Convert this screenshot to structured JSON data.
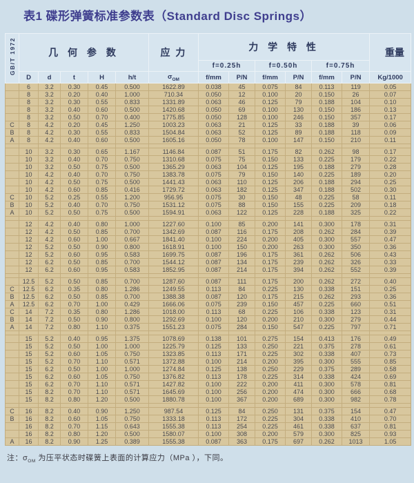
{
  "title": "表1 碟形弹簧标准参数表（Standard Disc Springs）",
  "side_label": "GB/T 1972",
  "header": {
    "geometry": "几 何 参 数",
    "stress": "应 力",
    "mechanical": "力 学 特 性",
    "weight": "重量",
    "f_levels": [
      "f=0.25h",
      "f=0.50h",
      "f=0.75h"
    ],
    "sigma": "σ",
    "sigma_sub": "OM",
    "cols": {
      "D": "D",
      "d": "d",
      "t": "t",
      "H": "H",
      "ht": "h/t",
      "f": "f/mm",
      "p": "P/N",
      "kg": "Kg/1000"
    }
  },
  "table": {
    "columns_per_row": [
      "series",
      "D",
      "d",
      "t",
      "H",
      "h/t",
      "sigma_OM",
      "f_025",
      "P_025",
      "f_050",
      "P_050",
      "f_075",
      "P_075",
      "kg_per_1000"
    ],
    "groups": [
      {
        "rows": [
          [
            "",
            "6",
            "3.2",
            "0.30",
            "0.45",
            "0.500",
            "1622.89",
            "0.038",
            "45",
            "0.075",
            "84",
            "0.113",
            "119",
            "0.05"
          ],
          [
            "",
            "8",
            "3.2",
            "0.20",
            "0.40",
            "1.000",
            "710.34",
            "0.050",
            "12",
            "0.100",
            "20",
            "0.150",
            "26",
            "0.07"
          ],
          [
            "",
            "8",
            "3.2",
            "0.30",
            "0.55",
            "0.833",
            "1331.89",
            "0.063",
            "46",
            "0.125",
            "79",
            "0.188",
            "104",
            "0.10"
          ],
          [
            "",
            "8",
            "3.2",
            "0.40",
            "0.60",
            "0.500",
            "1420.68",
            "0.050",
            "69",
            "0.100",
            "130",
            "0.150",
            "186",
            "0.13"
          ],
          [
            "",
            "8",
            "3.2",
            "0.50",
            "0.70",
            "0.400",
            "1775.85",
            "0.050",
            "128",
            "0.100",
            "246",
            "0.150",
            "357",
            "0.17"
          ],
          [
            "C",
            "8",
            "4.2",
            "0.20",
            "0.45",
            "1.250",
            "1003.23",
            "0.063",
            "21",
            "0.125",
            "33",
            "0.188",
            "39",
            "0.06"
          ],
          [
            "B",
            "8",
            "4.2",
            "0.30",
            "0.55",
            "0.833",
            "1504.84",
            "0.063",
            "52",
            "0.125",
            "89",
            "0.188",
            "118",
            "0.09"
          ],
          [
            "A",
            "8",
            "4.2",
            "0.40",
            "0.60",
            "0.500",
            "1605.16",
            "0.050",
            "78",
            "0.100",
            "147",
            "0.150",
            "210",
            "0.11"
          ]
        ]
      },
      {
        "rows": [
          [
            "",
            "10",
            "3.2",
            "0.30",
            "0.65",
            "1.167",
            "1146.84",
            "0.087",
            "51",
            "0.175",
            "82",
            "0.262",
            "98",
            "0.17"
          ],
          [
            "",
            "10",
            "3.2",
            "0.40",
            "0.70",
            "0.750",
            "1310.68",
            "0.075",
            "75",
            "0.150",
            "133",
            "0.225",
            "179",
            "0.22"
          ],
          [
            "",
            "10",
            "3.2",
            "0.50",
            "0.75",
            "0.500",
            "1365.29",
            "0.063",
            "104",
            "0.125",
            "195",
            "0.188",
            "279",
            "0.28"
          ],
          [
            "",
            "10",
            "4.2",
            "0.40",
            "0.70",
            "0.750",
            "1383.78",
            "0.075",
            "79",
            "0.150",
            "140",
            "0.225",
            "189",
            "0.20"
          ],
          [
            "",
            "10",
            "4.2",
            "0.50",
            "0.75",
            "0.500",
            "1441.43",
            "0.063",
            "110",
            "0.125",
            "206",
            "0.188",
            "294",
            "0.25"
          ],
          [
            "",
            "10",
            "4.2",
            "0.60",
            "0.85",
            "0.416",
            "1729.72",
            "0.063",
            "182",
            "0.125",
            "347",
            "0.188",
            "502",
            "0.30"
          ],
          [
            "C",
            "10",
            "5.2",
            "0.25",
            "0.55",
            "1.200",
            "956.95",
            "0.075",
            "30",
            "0.150",
            "48",
            "0.225",
            "58",
            "0.11"
          ],
          [
            "B",
            "10",
            "5.2",
            "0.40",
            "0.70",
            "0.750",
            "1531.12",
            "0.075",
            "88",
            "0.150",
            "155",
            "0.225",
            "209",
            "0.18"
          ],
          [
            "A",
            "10",
            "5.2",
            "0.50",
            "0.75",
            "0.500",
            "1594.91",
            "0.063",
            "122",
            "0.125",
            "228",
            "0.188",
            "325",
            "0.22"
          ]
        ]
      },
      {
        "rows": [
          [
            "",
            "12",
            "4.2",
            "0.40",
            "0.80",
            "1.000",
            "1227.60",
            "0.100",
            "85",
            "0.200",
            "141",
            "0.300",
            "178",
            "0.31"
          ],
          [
            "",
            "12",
            "4.2",
            "0.50",
            "0.85",
            "0.700",
            "1342.69",
            "0.087",
            "116",
            "0.175",
            "208",
            "0.262",
            "284",
            "0.39"
          ],
          [
            "",
            "12",
            "4.2",
            "0.60",
            "1.00",
            "0.667",
            "1841.40",
            "0.100",
            "224",
            "0.200",
            "405",
            "0.300",
            "557",
            "0.47"
          ],
          [
            "",
            "12",
            "5.2",
            "0.50",
            "0.90",
            "0.800",
            "1618.91",
            "0.100",
            "150",
            "0.200",
            "263",
            "0.300",
            "350",
            "0.36"
          ],
          [
            "",
            "12",
            "5.2",
            "0.60",
            "0.95",
            "0.583",
            "1699.75",
            "0.087",
            "196",
            "0.175",
            "361",
            "0.262",
            "506",
            "0.43"
          ],
          [
            "",
            "12",
            "6.2",
            "0.50",
            "0.85",
            "0.700",
            "1544.12",
            "0.087",
            "134",
            "0.175",
            "239",
            "0.262",
            "326",
            "0.33"
          ],
          [
            "",
            "12",
            "6.2",
            "0.60",
            "0.95",
            "0.583",
            "1852.95",
            "0.087",
            "214",
            "0.175",
            "394",
            "0.262",
            "552",
            "0.39"
          ]
        ]
      },
      {
        "rows": [
          [
            "",
            "12.5",
            "5.2",
            "0.50",
            "0.85",
            "0.700",
            "1287.60",
            "0.087",
            "111",
            "0.175",
            "200",
            "0.262",
            "272",
            "0.40"
          ],
          [
            "C",
            "12.5",
            "6.2",
            "0.35",
            "0.80",
            "1.286",
            "1249.55",
            "0.113",
            "84",
            "0.225",
            "130",
            "0.338",
            "151",
            "0.25"
          ],
          [
            "B",
            "12.5",
            "6.2",
            "0.50",
            "0.85",
            "0.700",
            "1388.38",
            "0.087",
            "120",
            "0.175",
            "215",
            "0.262",
            "293",
            "0.36"
          ],
          [
            "A",
            "12.5",
            "6.2",
            "0.70",
            "1.00",
            "0.429",
            "1666.06",
            "0.075",
            "239",
            "0.150",
            "457",
            "0.225",
            "660",
            "0.51"
          ],
          [
            "C",
            "14",
            "7.2",
            "0.35",
            "0.80",
            "1.286",
            "1018.00",
            "0.113",
            "68",
            "0.225",
            "106",
            "0.338",
            "123",
            "0.31"
          ],
          [
            "B",
            "14",
            "7.2",
            "0.50",
            "0.90",
            "0.800",
            "1292.69",
            "0.100",
            "120",
            "0.200",
            "210",
            "0.300",
            "279",
            "0.44"
          ],
          [
            "A",
            "14",
            "7.2",
            "0.80",
            "1.10",
            "0.375",
            "1551.23",
            "0.075",
            "284",
            "0.150",
            "547",
            "0.225",
            "797",
            "0.71"
          ]
        ]
      },
      {
        "rows": [
          [
            "",
            "15",
            "5.2",
            "0.40",
            "0.95",
            "1.375",
            "1078.69",
            "0.138",
            "101",
            "0.275",
            "154",
            "0.413",
            "176",
            "0.49"
          ],
          [
            "",
            "15",
            "5.2",
            "0.50",
            "1.00",
            "1.000",
            "1225.79",
            "0.125",
            "133",
            "0.250",
            "221",
            "0.375",
            "278",
            "0.61"
          ],
          [
            "",
            "15",
            "5.2",
            "0.60",
            "1.05",
            "0.750",
            "1323.85",
            "0.113",
            "171",
            "0.225",
            "302",
            "0.338",
            "407",
            "0.73"
          ],
          [
            "",
            "15",
            "5.2",
            "0.70",
            "1.10",
            "0.571",
            "1372.88",
            "0.100",
            "214",
            "0.200",
            "395",
            "0.300",
            "555",
            "0.85"
          ],
          [
            "",
            "15",
            "6.2",
            "0.50",
            "1.00",
            "1.000",
            "1274.84",
            "0.125",
            "138",
            "0.250",
            "229",
            "0.375",
            "289",
            "0.58"
          ],
          [
            "",
            "15",
            "6.2",
            "0.60",
            "1.05",
            "0.750",
            "1376.82",
            "0.113",
            "178",
            "0.225",
            "314",
            "0.338",
            "424",
            "0.69"
          ],
          [
            "",
            "15",
            "6.2",
            "0.70",
            "1.10",
            "0.571",
            "1427.82",
            "0.100",
            "222",
            "0.200",
            "411",
            "0.300",
            "578",
            "0.81"
          ],
          [
            "",
            "15",
            "8.2",
            "0.70",
            "1.10",
            "0.571",
            "1645.69",
            "0.100",
            "256",
            "0.200",
            "474",
            "0.300",
            "666",
            "0.68"
          ],
          [
            "",
            "15",
            "8.2",
            "0.80",
            "1.20",
            "0.500",
            "1880.78",
            "0.100",
            "367",
            "0.200",
            "689",
            "0.300",
            "982",
            "0.78"
          ]
        ]
      },
      {
        "rows": [
          [
            "C",
            "16",
            "8.2",
            "0.40",
            "0.90",
            "1.250",
            "987.54",
            "0.125",
            "84",
            "0.250",
            "131",
            "0.375",
            "154",
            "0.47"
          ],
          [
            "B",
            "16",
            "8.2",
            "0.60",
            "1.05",
            "0.750",
            "1333.18",
            "0.113",
            "172",
            "0.225",
            "304",
            "0.338",
            "410",
            "0.70"
          ],
          [
            "",
            "16",
            "8.2",
            "0.70",
            "1.15",
            "0.643",
            "1555.38",
            "0.113",
            "254",
            "0.225",
            "461",
            "0.338",
            "637",
            "0.81"
          ],
          [
            "",
            "16",
            "8.2",
            "0.80",
            "1.20",
            "0.500",
            "1580.07",
            "0.100",
            "308",
            "0.200",
            "579",
            "0.300",
            "825",
            "0.93"
          ],
          [
            "A",
            "16",
            "8.2",
            "0.90",
            "1.25",
            "0.389",
            "1555.38",
            "0.087",
            "363",
            "0.175",
            "697",
            "0.262",
            "1013",
            "1.05"
          ]
        ]
      }
    ]
  },
  "note": {
    "prefix": "注：",
    "sigma": "σ",
    "sigma_sub": "OM",
    "text": " 为压平状态时碟簧上表面的计算应力（MPa ），下同。"
  },
  "colors": {
    "page_bg": "#cfdfea",
    "header_bg": "#d7e5ef",
    "body_bg": "#d8c79e",
    "grid": "#c3ad7e",
    "title_text": "#3f3e8e",
    "header_text": "#2e3a5e",
    "body_text": "#49494f"
  }
}
